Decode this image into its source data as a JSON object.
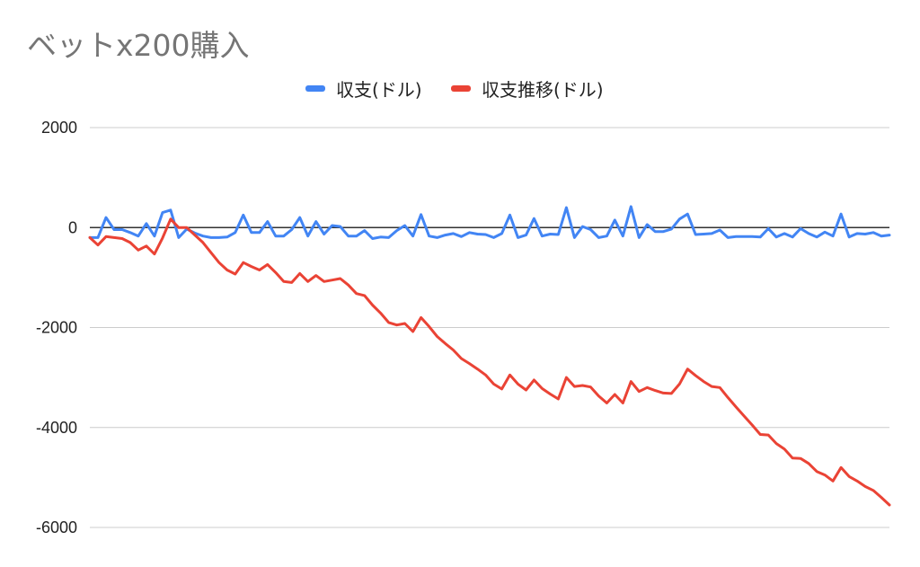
{
  "chart_data": {
    "type": "line",
    "title": "ベットx200購入",
    "xlabel": "",
    "ylabel": "",
    "ylim": [
      -6000,
      2000
    ],
    "yticks": [
      2000,
      0,
      -2000,
      -4000,
      -6000
    ],
    "grid": true,
    "legend": "top-center",
    "x": [
      1,
      2,
      3,
      4,
      5,
      6,
      7,
      8,
      9,
      10,
      11,
      12,
      13,
      14,
      15,
      16,
      17,
      18,
      19,
      20,
      21,
      22,
      23,
      24,
      25,
      26,
      27,
      28,
      29,
      30,
      31,
      32,
      33,
      34,
      35,
      36,
      37,
      38,
      39,
      40,
      41,
      42,
      43,
      44,
      45,
      46,
      47,
      48,
      49,
      50,
      51,
      52,
      53,
      54,
      55,
      56,
      57,
      58,
      59,
      60,
      61,
      62,
      63,
      64,
      65,
      66,
      67,
      68,
      69,
      70,
      71,
      72,
      73,
      74,
      75,
      76,
      77,
      78,
      79,
      80,
      81,
      82,
      83,
      84,
      85,
      86,
      87,
      88,
      89,
      90,
      91,
      92,
      93,
      94,
      95,
      96,
      97,
      98,
      99,
      100
    ],
    "series": [
      {
        "name": "収支(ドル)",
        "color": "#4285f4",
        "values": [
          -200,
          -200,
          200,
          -40,
          -40,
          -100,
          -170,
          80,
          -170,
          300,
          350,
          -200,
          -30,
          -110,
          -170,
          -200,
          -200,
          -190,
          -100,
          250,
          -100,
          -100,
          120,
          -170,
          -170,
          -40,
          200,
          -170,
          120,
          -130,
          40,
          20,
          -170,
          -170,
          -60,
          -220,
          -190,
          -200,
          -60,
          40,
          -170,
          260,
          -170,
          -200,
          -150,
          -120,
          -180,
          -100,
          -130,
          -140,
          -200,
          -120,
          250,
          -200,
          -150,
          180,
          -170,
          -130,
          -140,
          400,
          -200,
          20,
          -40,
          -200,
          -170,
          150,
          -170,
          420,
          -200,
          60,
          -80,
          -80,
          -30,
          170,
          270,
          -140,
          -130,
          -120,
          -50,
          -200,
          -180,
          -180,
          -180,
          -190,
          -20,
          -190,
          -120,
          -190,
          -20,
          -120,
          -190,
          -90,
          -170,
          270,
          -190,
          -120,
          -130,
          -100,
          -170,
          -150
        ]
      },
      {
        "name": "収支推移(ドル)",
        "color": "#ea4335",
        "values": [
          -200,
          -350,
          -180,
          -200,
          -220,
          -300,
          -450,
          -370,
          -530,
          -210,
          170,
          0,
          0,
          -150,
          -300,
          -500,
          -700,
          -850,
          -930,
          -700,
          -780,
          -850,
          -740,
          -900,
          -1080,
          -1100,
          -920,
          -1080,
          -960,
          -1080,
          -1050,
          -1020,
          -1150,
          -1320,
          -1360,
          -1550,
          -1710,
          -1900,
          -1950,
          -1920,
          -2080,
          -1800,
          -1980,
          -2180,
          -2320,
          -2450,
          -2620,
          -2720,
          -2830,
          -2950,
          -3130,
          -3230,
          -2950,
          -3130,
          -3250,
          -3050,
          -3220,
          -3330,
          -3430,
          -3000,
          -3180,
          -3160,
          -3190,
          -3370,
          -3510,
          -3340,
          -3510,
          -3080,
          -3280,
          -3200,
          -3260,
          -3310,
          -3320,
          -3130,
          -2830,
          -2960,
          -3080,
          -3180,
          -3200,
          -3400,
          -3590,
          -3770,
          -3950,
          -4140,
          -4150,
          -4320,
          -4430,
          -4610,
          -4620,
          -4720,
          -4880,
          -4950,
          -5070,
          -4800,
          -4980,
          -5070,
          -5180,
          -5260,
          -5400,
          -5550
        ]
      }
    ]
  }
}
